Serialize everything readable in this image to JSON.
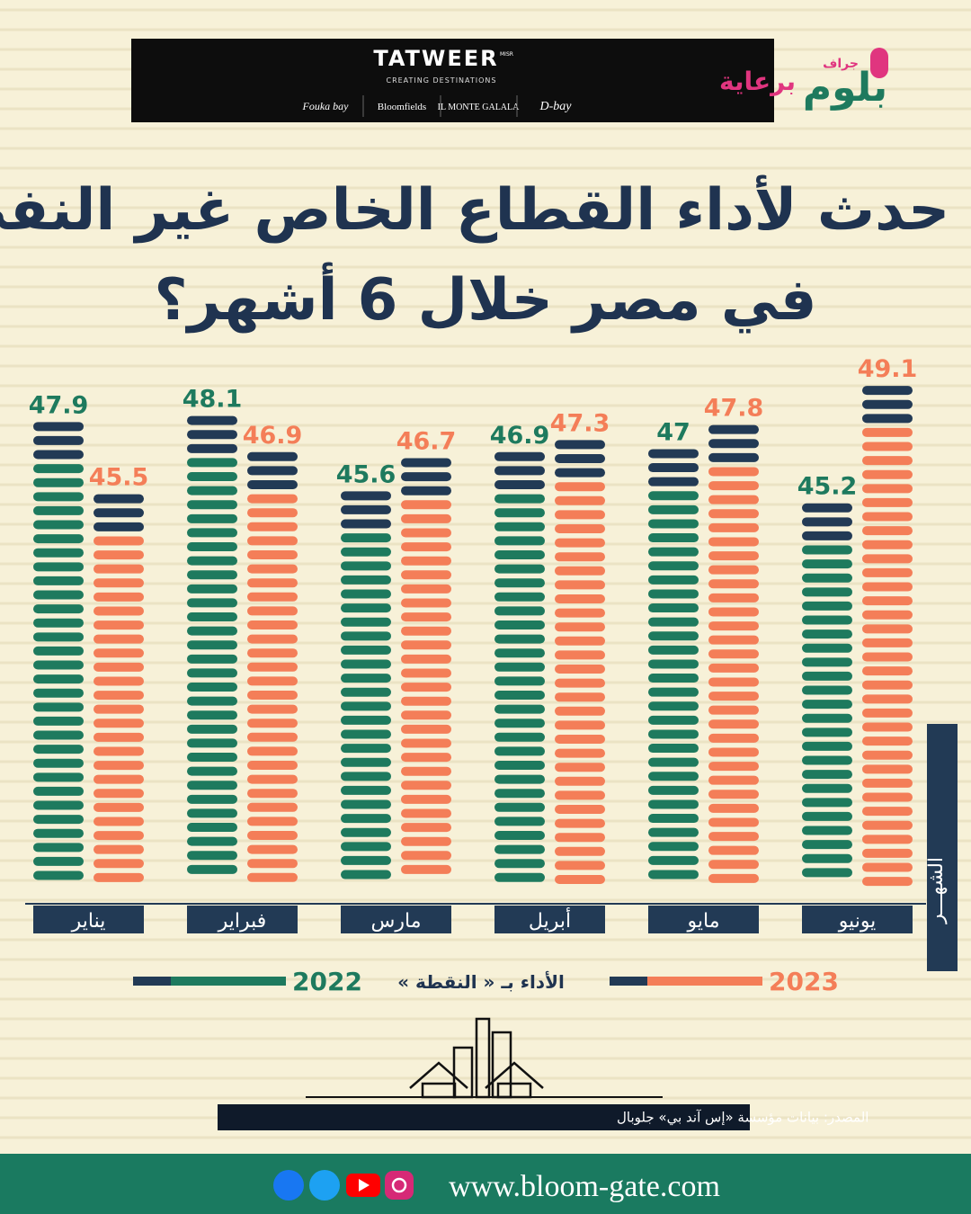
{
  "chart_data": {
    "type": "bar",
    "title": [
      "ماذا حدث لأداء القطاع الخاص غير النفطي",
      "في مصر خلال 6 أشهر؟"
    ],
    "categories": [
      "يناير",
      "فبراير",
      "مارس",
      "أبريل",
      "مايو",
      "يونيو"
    ],
    "series": [
      {
        "name": "2022",
        "color": "#1e7a5e",
        "values": [
          47.9,
          48.1,
          45.6,
          46.9,
          47,
          45.2
        ]
      },
      {
        "name": "2023",
        "color": "#f47e58",
        "values": [
          45.5,
          46.9,
          46.7,
          47.3,
          47.8,
          49.1
        ]
      }
    ],
    "cap_color": "#223a55",
    "ylim": [
      32.5,
      50
    ],
    "x_label": "الشهـــر",
    "y_label": "الأداء بـ « النقطة »",
    "source": "المصدر: بيانات مؤسسة «إس آند بي» جلوبال"
  },
  "header": {
    "sponsor_label": "برعاية",
    "logo_small": "جراف",
    "logo": "بلوم",
    "sponsor_brand": "TATWEER",
    "sponsor_brand_sub": "MISR",
    "sponsor_tagline": "CREATING DESTINATIONS",
    "projects": [
      "Fouka bay",
      "Bloomfields",
      "IL MONTE GALALA",
      "D-bay"
    ]
  },
  "footer": {
    "website": "www.bloom-gate.com"
  }
}
